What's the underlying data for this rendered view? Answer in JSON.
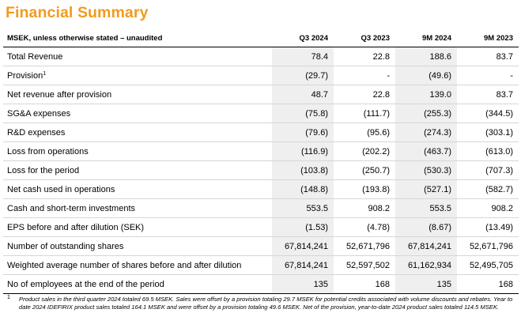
{
  "title": "Financial Summary",
  "table": {
    "header": {
      "label": "MSEK, unless otherwise stated – unaudited",
      "columns": [
        "Q3 2024",
        "Q3 2023",
        "9M 2024",
        "9M 2023"
      ]
    },
    "rows": [
      {
        "label": "Total Revenue",
        "values": [
          "78.4",
          "22.8",
          "188.6",
          "83.7"
        ]
      },
      {
        "label": "Provision",
        "footnote": "1",
        "values": [
          "(29.7)",
          "-",
          "(49.6)",
          "-"
        ]
      },
      {
        "label": "Net revenue after provision",
        "values": [
          "48.7",
          "22.8",
          "139.0",
          "83.7"
        ]
      },
      {
        "label": "SG&A expenses",
        "values": [
          "(75.8)",
          "(111.7)",
          "(255.3)",
          "(344.5)"
        ]
      },
      {
        "label": "R&D expenses",
        "values": [
          "(79.6)",
          "(95.6)",
          "(274.3)",
          "(303.1)"
        ]
      },
      {
        "label": "Loss from operations",
        "values": [
          "(116.9)",
          "(202.2)",
          "(463.7)",
          "(613.0)"
        ]
      },
      {
        "label": "Loss for the period",
        "values": [
          "(103.8)",
          "(250.7)",
          "(530.3)",
          "(707.3)"
        ]
      },
      {
        "label": "Net cash used in operations",
        "values": [
          "(148.8)",
          "(193.8)",
          "(527.1)",
          "(582.7)"
        ]
      },
      {
        "label": "Cash and short-term investments",
        "values": [
          "553.5",
          "908.2",
          "553.5",
          "908.2"
        ]
      },
      {
        "label": "EPS before and after dilution (SEK)",
        "values": [
          "(1.53)",
          "(4.78)",
          "(8.67)",
          "(13.49)"
        ]
      },
      {
        "label": "Number of outstanding shares",
        "values": [
          "67,814,241",
          "52,671,796",
          "67,814,241",
          "52,671,796"
        ]
      },
      {
        "label": "Weighted average number of shares before and after dilution",
        "values": [
          "67,814,241",
          "52,597,502",
          "61,162,934",
          "52,495,705"
        ]
      },
      {
        "label": "No of employees at the end of the period",
        "values": [
          "135",
          "168",
          "135",
          "168"
        ]
      }
    ]
  },
  "footnote": {
    "marker": "1",
    "text": "Product sales in the third quarter 2024 totaled 69.5 MSEK. Sales were offset by a provision totaling 29.7 MSEK for potential credits associated with volume discounts and rebates. Year to date 2024 IDEFIRIX product sales totaled 164.1 MSEK and were offset by a provision totaling 49.6 MSEK. Net of the provision, year-to-date 2024 product sales totaled 114.5 MSEK."
  },
  "colors": {
    "title": "#f29a1e",
    "shaded_column": "#efefef",
    "row_divider": "#d6d6d6"
  }
}
